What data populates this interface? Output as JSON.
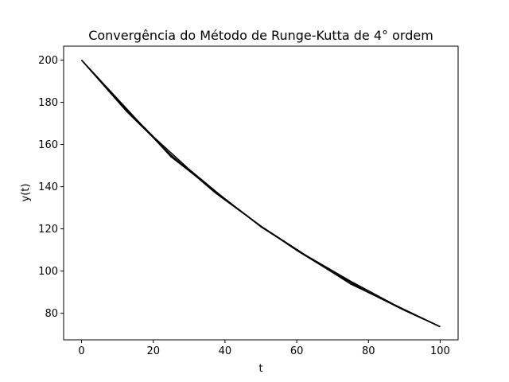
{
  "chart_data": {
    "type": "line",
    "title": "Convergência do Método de Runge-Kutta de 4° ordem",
    "xlabel": "t",
    "ylabel": "y(t)",
    "xlim": [
      -5,
      105
    ],
    "ylim": [
      67.4,
      206.6
    ],
    "xticks": [
      0,
      20,
      40,
      60,
      80,
      100
    ],
    "yticks": [
      80,
      100,
      120,
      140,
      160,
      180,
      200
    ],
    "grid": false,
    "legend": "none",
    "line_color": "#000000",
    "series": [
      {
        "x": [
          0,
          25,
          50,
          75,
          100
        ],
        "y": [
          200.0,
          154.1,
          121.0,
          93.9,
          73.6
        ]
      },
      {
        "x": [
          0,
          12.5,
          25,
          37.5,
          50,
          62.5,
          75,
          87.5,
          100
        ],
        "y": [
          200.0,
          175.8,
          154.9,
          136.8,
          121.3,
          107.5,
          95.2,
          83.8,
          73.6
        ]
      },
      {
        "x": [
          0,
          10,
          20,
          30,
          40,
          50,
          60,
          70,
          80,
          90,
          100
        ],
        "y": [
          200.0,
          180.9,
          163.7,
          148.2,
          134.1,
          121.3,
          109.8,
          99.4,
          89.9,
          81.4,
          73.6
        ]
      }
    ]
  }
}
